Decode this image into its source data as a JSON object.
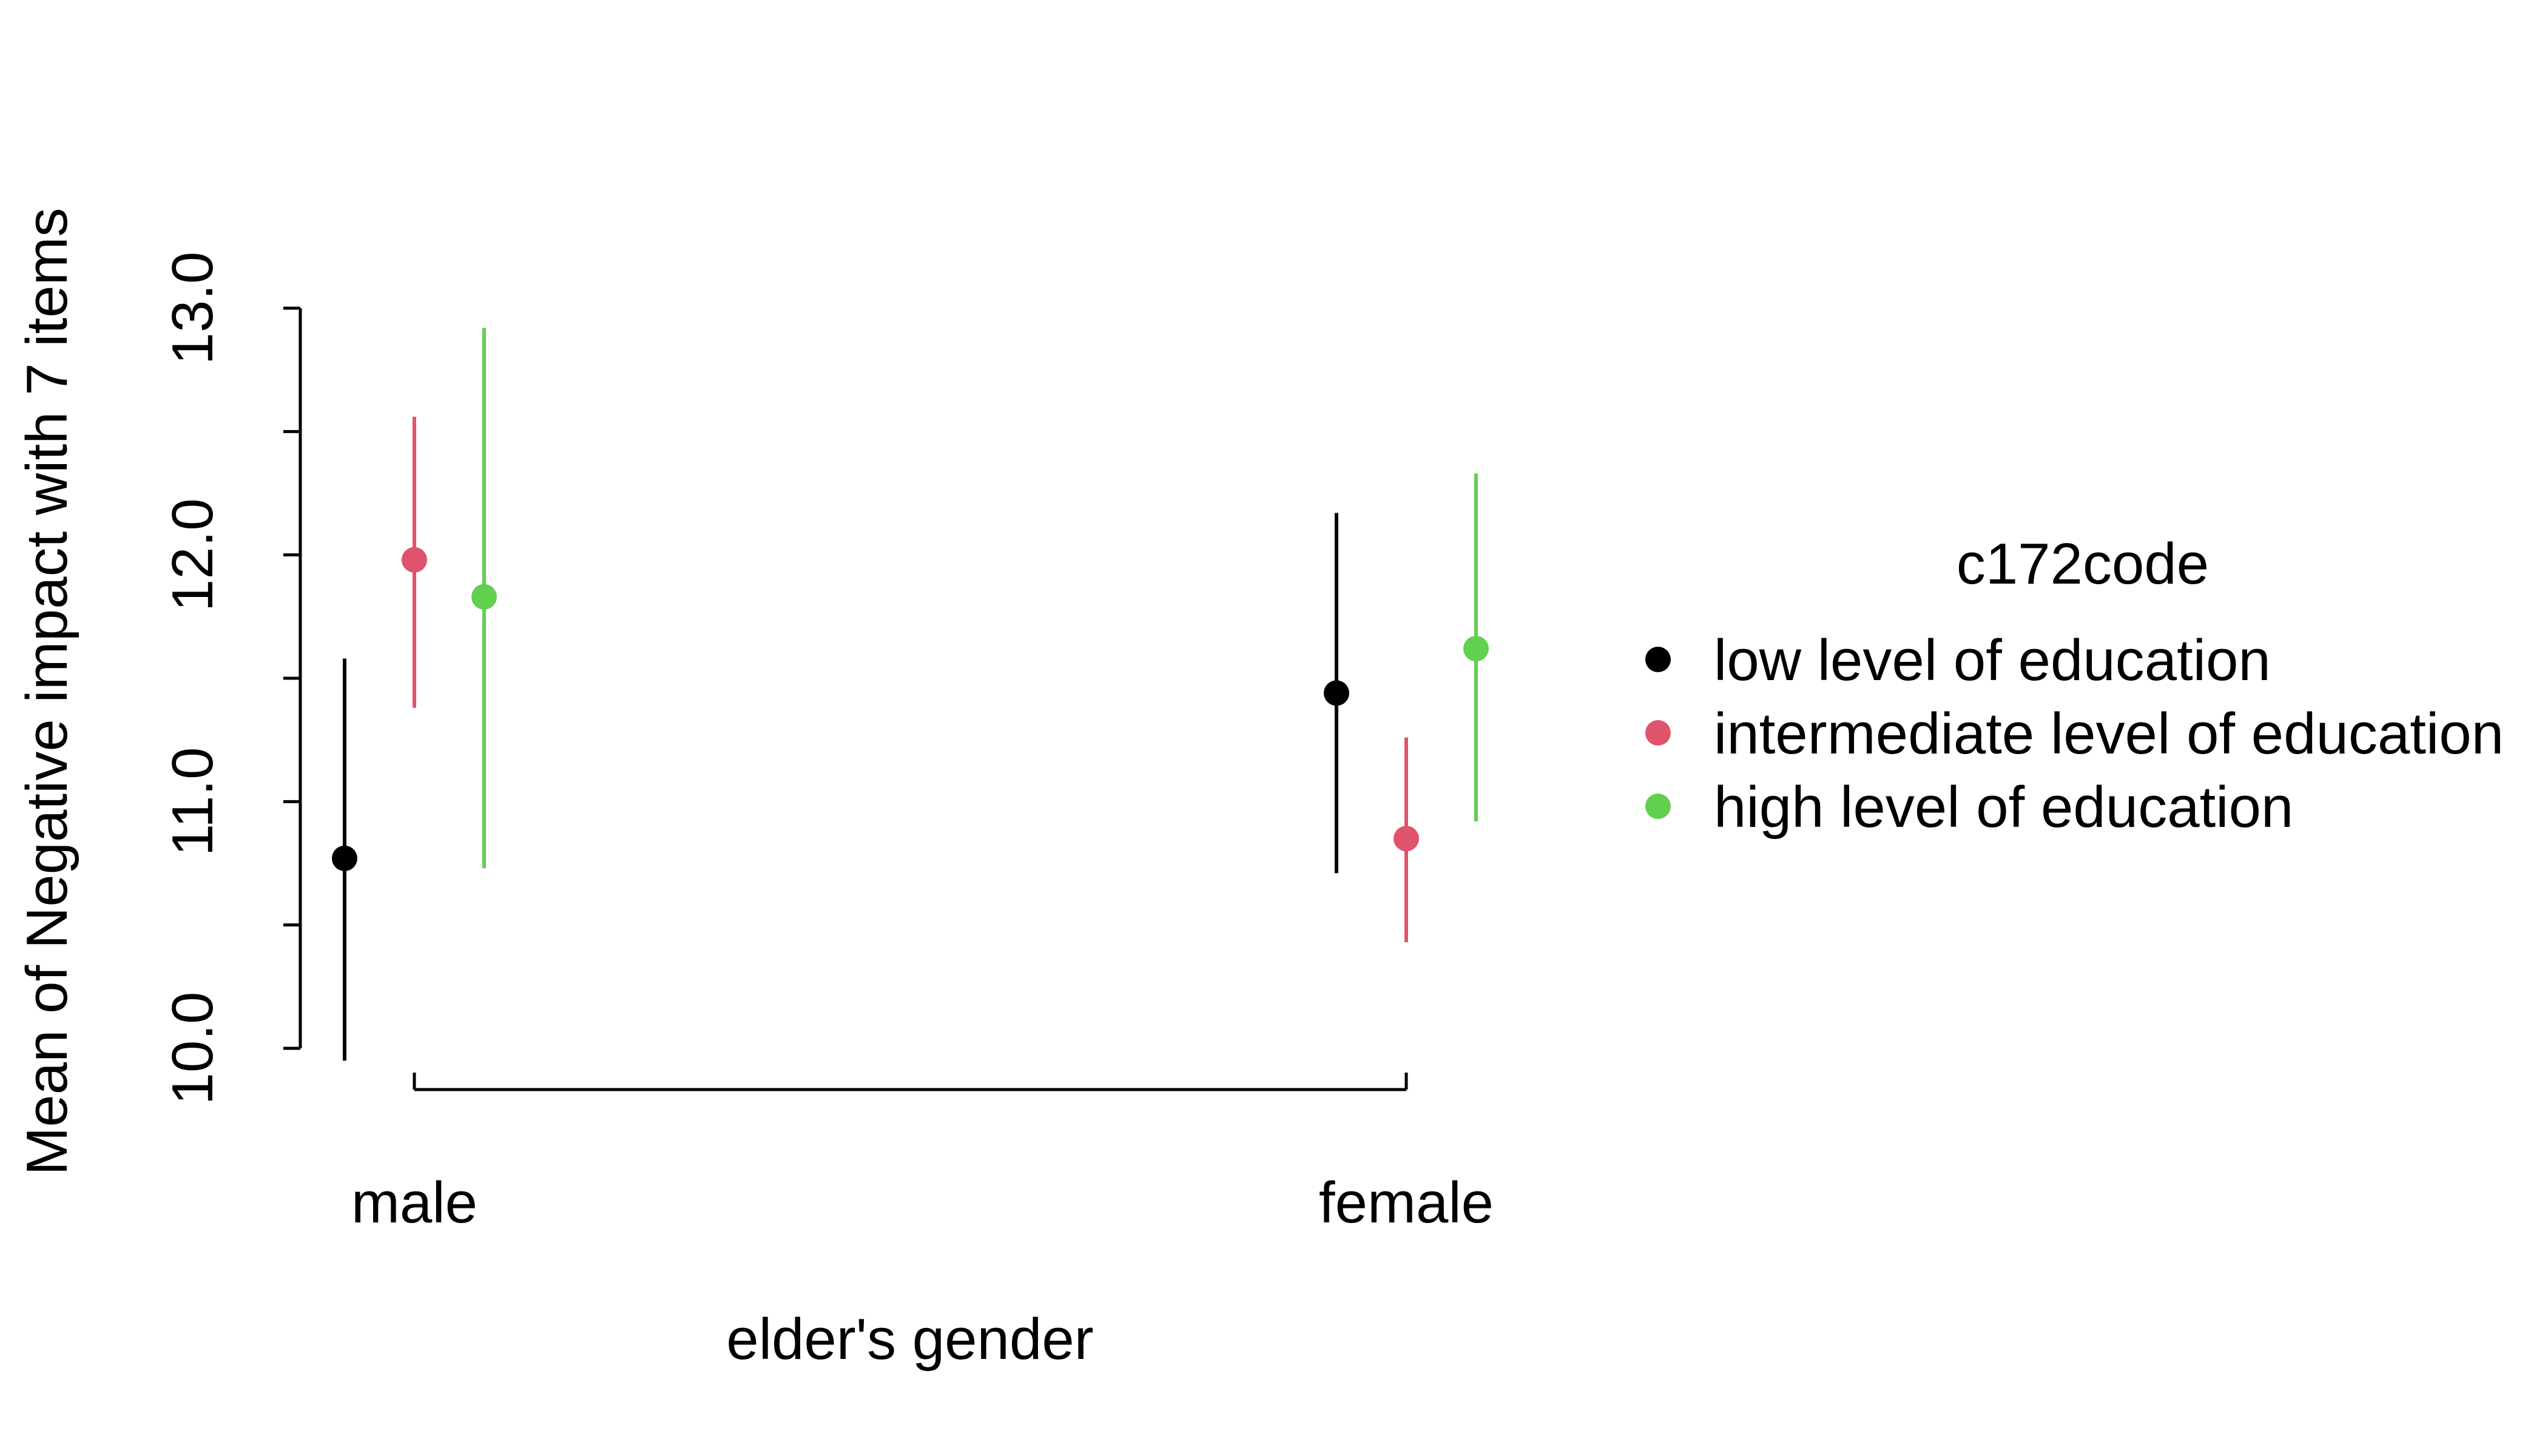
{
  "chart_data": {
    "type": "scatter",
    "title": "",
    "xlabel": "elder's gender",
    "ylabel": "Mean of Negative impact with 7 items",
    "categories": [
      "male",
      "female"
    ],
    "ylim": [
      10.0,
      13.0
    ],
    "yticks": [
      10.0,
      10.5,
      11.0,
      11.5,
      12.0,
      12.5,
      13.0
    ],
    "ytick_labels": [
      "10.0",
      "",
      "11.0",
      "",
      "12.0",
      "",
      "13.0"
    ],
    "legend_title": "c172code",
    "legend_position": "right",
    "grid": false,
    "series": [
      {
        "name": "low level of education",
        "color": "#000000",
        "values": [
          10.77,
          11.44
        ],
        "lower": [
          9.95,
          10.71
        ],
        "upper": [
          11.58,
          12.17
        ]
      },
      {
        "name": "intermediate level of education",
        "color": "#DF536B",
        "values": [
          11.98,
          10.85
        ],
        "lower": [
          11.38,
          10.43
        ],
        "upper": [
          12.56,
          11.26
        ]
      },
      {
        "name": "high level of education",
        "color": "#61D04F",
        "values": [
          11.83,
          11.62
        ],
        "lower": [
          10.73,
          10.92
        ],
        "upper": [
          12.92,
          12.33
        ]
      }
    ]
  }
}
